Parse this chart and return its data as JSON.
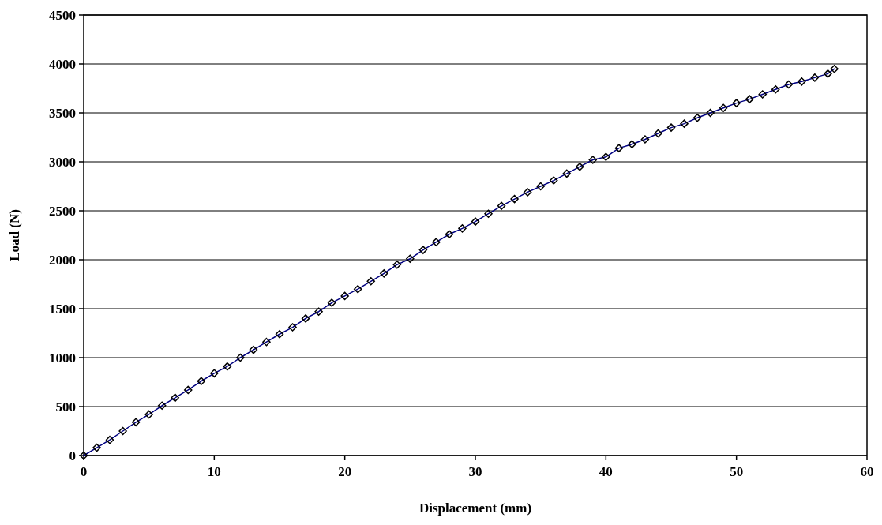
{
  "chart_data": {
    "type": "line",
    "xlabel": "Displacement (mm)",
    "ylabel": "Load (N)",
    "xlim": [
      0,
      60
    ],
    "xticks": [
      0,
      10,
      20,
      30,
      40,
      50,
      60
    ],
    "ylim": [
      0,
      4500
    ],
    "yticks": [
      0,
      500,
      1000,
      1500,
      2000,
      2500,
      3000,
      3500,
      4000,
      4500
    ],
    "grid": "y",
    "marker": "diamond",
    "line_style": "solid",
    "x": [
      0,
      1,
      2,
      3,
      4,
      5,
      6,
      7,
      8,
      9,
      10,
      11,
      12,
      13,
      14,
      15,
      16,
      17,
      18,
      19,
      20,
      21,
      22,
      23,
      24,
      25,
      26,
      27,
      28,
      29,
      30,
      31,
      32,
      33,
      34,
      35,
      36,
      37,
      38,
      39,
      40,
      41,
      42,
      43,
      44,
      45,
      46,
      47,
      48,
      49,
      50,
      51,
      52,
      53,
      54,
      55,
      56,
      57,
      57.5
    ],
    "series": [
      {
        "color": "#000080",
        "values": [
          0,
          80,
          160,
          250,
          340,
          420,
          510,
          590,
          670,
          760,
          840,
          910,
          1000,
          1080,
          1160,
          1240,
          1310,
          1400,
          1470,
          1560,
          1630,
          1700,
          1780,
          1860,
          1950,
          2010,
          2100,
          2180,
          2260,
          2320,
          2390,
          2470,
          2550,
          2620,
          2690,
          2750,
          2810,
          2880,
          2950,
          3020,
          3050,
          3140,
          3180,
          3230,
          3290,
          3350,
          3390,
          3450,
          3500,
          3550,
          3600,
          3640,
          3690,
          3740,
          3790,
          3820,
          3860,
          3900,
          3950
        ]
      }
    ]
  }
}
